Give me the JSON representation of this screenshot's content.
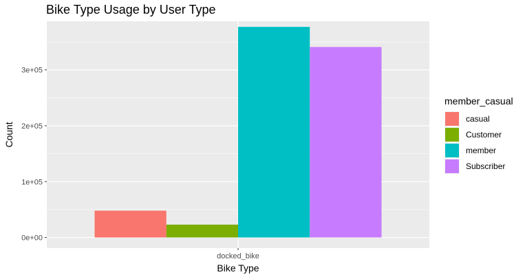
{
  "chart_data": {
    "type": "bar",
    "title": "Bike Type Usage by User Type",
    "xlabel": "Bike Type",
    "ylabel": "Count",
    "categories": [
      "docked_bike"
    ],
    "ylim": [
      -19000,
      387000
    ],
    "yticks": [
      0,
      100000,
      200000,
      300000
    ],
    "ytick_labels": [
      "0e+00",
      "1e+05",
      "2e+05",
      "3e+05"
    ],
    "grid": true,
    "legend_placement": "right",
    "legend_title": "member_casual",
    "series": [
      {
        "name": "casual",
        "color": "#F8766D",
        "values": [
          48000
        ]
      },
      {
        "name": "Customer",
        "color": "#7CAE00",
        "values": [
          23000
        ]
      },
      {
        "name": "member",
        "color": "#00BFC4",
        "values": [
          377000
        ]
      },
      {
        "name": "Subscriber",
        "color": "#C77CFF",
        "values": [
          341000
        ]
      }
    ]
  }
}
